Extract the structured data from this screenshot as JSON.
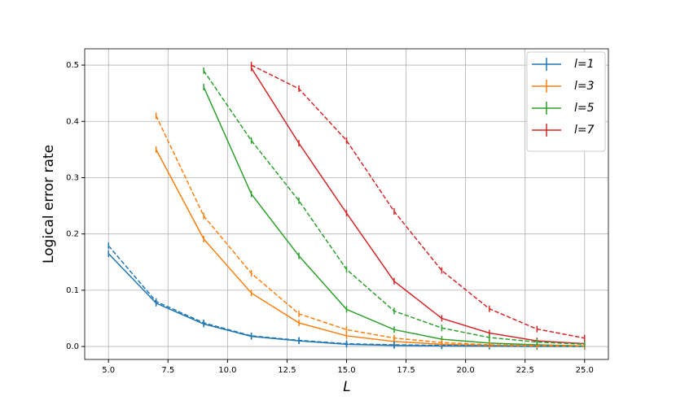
{
  "chart_data": {
    "type": "line",
    "xlabel": "L",
    "ylabel": "Logical error rate",
    "x": [
      5,
      7,
      9,
      11,
      13,
      15,
      17,
      19,
      21,
      23,
      25
    ],
    "series": [
      {
        "name": "l=1",
        "color": "#1f77b4",
        "linestyle": "solid",
        "values": [
          0.165,
          0.077,
          0.04,
          0.018,
          0.01,
          0.004,
          0.002,
          0.001,
          0.0005,
          0.0002,
          0.0001
        ]
      },
      {
        "name": "l=3",
        "color": "#ff7f0e",
        "linestyle": "solid",
        "values": [
          null,
          0.35,
          0.191,
          0.095,
          0.042,
          0.019,
          0.009,
          0.004,
          0.002,
          0.001,
          0.0005
        ]
      },
      {
        "name": "l=5",
        "color": "#2ca02c",
        "linestyle": "solid",
        "values": [
          null,
          null,
          0.461,
          0.271,
          0.161,
          0.066,
          0.03,
          0.013,
          0.006,
          0.003,
          0.001
        ]
      },
      {
        "name": "l=7",
        "color": "#d62728",
        "linestyle": "solid",
        "values": [
          null,
          null,
          null,
          0.495,
          0.361,
          0.237,
          0.116,
          0.05,
          0.024,
          0.01,
          0.005
        ]
      },
      {
        "color": "#1f77b4",
        "linestyle": "dashed",
        "values": [
          0.179,
          0.08,
          0.042,
          0.019,
          0.011,
          0.005,
          0.003,
          0.002,
          0.001,
          0.0005,
          0.0002
        ]
      },
      {
        "color": "#ff7f0e",
        "linestyle": "dashed",
        "values": [
          null,
          0.41,
          0.232,
          0.13,
          0.058,
          0.03,
          0.015,
          0.007,
          0.003,
          0.002,
          0.001
        ]
      },
      {
        "color": "#2ca02c",
        "linestyle": "dashed",
        "values": [
          null,
          null,
          0.49,
          0.366,
          0.259,
          0.137,
          0.063,
          0.033,
          0.016,
          0.008,
          0.004
        ]
      },
      {
        "color": "#d62728",
        "linestyle": "dashed",
        "values": [
          null,
          null,
          null,
          0.5,
          0.458,
          0.366,
          0.24,
          0.135,
          0.067,
          0.031,
          0.015
        ]
      }
    ],
    "xlim": [
      4.0,
      26.0
    ],
    "ylim": [
      -0.023,
      0.529
    ],
    "xticks": [
      {
        "value": 5,
        "label": "5.0"
      },
      7.5,
      {
        "value": 10,
        "label": "10.0"
      },
      12.5,
      {
        "value": 15,
        "label": "15.0"
      },
      17.5,
      {
        "value": 20,
        "label": "20.0"
      },
      22.5,
      {
        "value": 25,
        "label": "25.0"
      }
    ],
    "yticks": [
      {
        "value": 0,
        "label": "0.0"
      },
      0.1,
      0.2,
      0.3,
      0.4,
      0.5
    ],
    "grid": true,
    "legend": "upper right"
  }
}
